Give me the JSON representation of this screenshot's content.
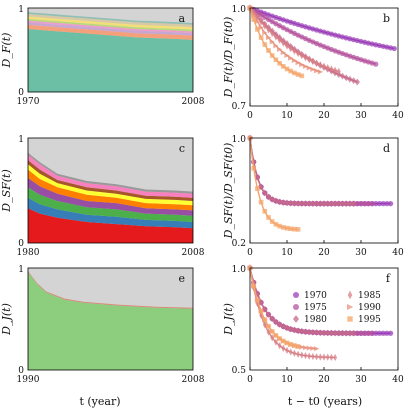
{
  "figure": {
    "xlabel_left": "t (year)",
    "xlabel_right": "t − t0 (years)"
  },
  "chart_data": [
    {
      "panel": "a",
      "type": "area",
      "ylabel": "D_F(t)",
      "xlim": [
        1970,
        2008
      ],
      "ylim": [
        0,
        1
      ],
      "xticks": [
        "1970",
        "2008"
      ],
      "yticks": [
        "0",
        "1"
      ],
      "x": [
        1970,
        1975,
        1980,
        1985,
        1990,
        1995,
        2000,
        2005,
        2008
      ],
      "background": "#d4d4d4",
      "series": [
        {
          "color": "#6cbfa5",
          "values": [
            0.75,
            0.73,
            0.71,
            0.69,
            0.67,
            0.65,
            0.64,
            0.63,
            0.62
          ]
        },
        {
          "color": "#f4a07a",
          "values": [
            0.05,
            0.05,
            0.05,
            0.05,
            0.05,
            0.05,
            0.05,
            0.05,
            0.05
          ]
        },
        {
          "color": "#c7a6d4",
          "values": [
            0.03,
            0.03,
            0.03,
            0.03,
            0.03,
            0.03,
            0.03,
            0.03,
            0.03
          ]
        },
        {
          "color": "#ec9ccc",
          "values": [
            0.02,
            0.02,
            0.02,
            0.02,
            0.02,
            0.02,
            0.02,
            0.02,
            0.02
          ]
        },
        {
          "color": "#b7d97a",
          "values": [
            0.02,
            0.02,
            0.02,
            0.02,
            0.02,
            0.02,
            0.02,
            0.02,
            0.02
          ]
        },
        {
          "color": "#f2df7a",
          "values": [
            0.03,
            0.03,
            0.03,
            0.03,
            0.03,
            0.03,
            0.03,
            0.03,
            0.03
          ]
        },
        {
          "color": "#d8c9a6",
          "values": [
            0.03,
            0.03,
            0.03,
            0.03,
            0.03,
            0.03,
            0.03,
            0.03,
            0.03
          ]
        },
        {
          "color": "#8fbfb5",
          "values": [
            0.02,
            0.02,
            0.02,
            0.02,
            0.02,
            0.02,
            0.02,
            0.02,
            0.02
          ]
        }
      ]
    },
    {
      "panel": "b",
      "type": "scatter",
      "ylabel": "D_F(t)/D_F(t0)",
      "xlim": [
        0,
        40
      ],
      "ylim": [
        0.7,
        1.0
      ],
      "xticks": [
        0,
        10,
        20,
        30,
        40
      ],
      "yticks": [
        "0.7",
        "1.0"
      ],
      "series": [
        {
          "name": "1970",
          "marker": "circle",
          "color": "#9b3fb8",
          "n": 39,
          "a": 0.26,
          "tau": 60,
          "s": 15
        },
        {
          "name": "1975",
          "marker": "hexagon",
          "color": "#b6539e",
          "n": 34,
          "a": 0.3,
          "tau": 40,
          "s": 12
        },
        {
          "name": "1980",
          "marker": "diamond",
          "color": "#c56a8a",
          "n": 29,
          "a": 0.33,
          "tau": 25,
          "s": 10
        },
        {
          "name": "1985",
          "marker": "thin_diamond",
          "color": "#d77f86",
          "n": 24,
          "a": 0.25,
          "tau": 16,
          "s": 8
        },
        {
          "name": "1990",
          "marker": "triangle_right",
          "color": "#e8927d",
          "n": 19,
          "a": 0.23,
          "tau": 10,
          "s": 6
        },
        {
          "name": "1995",
          "marker": "square",
          "color": "#f4a469",
          "n": 14,
          "a": 0.23,
          "tau": 6,
          "s": 4
        }
      ]
    },
    {
      "panel": "c",
      "type": "area",
      "ylabel": "D_SF(t)",
      "xlim": [
        1980,
        2008
      ],
      "ylim": [
        0,
        1
      ],
      "xticks": [
        "1980",
        "2008"
      ],
      "yticks": [
        "0",
        "1"
      ],
      "x": [
        1980,
        1982,
        1985,
        1990,
        1995,
        2000,
        2005,
        2008
      ],
      "background": "#d4d4d4",
      "series": [
        {
          "color": "#e41a1c",
          "values": [
            0.33,
            0.28,
            0.24,
            0.2,
            0.18,
            0.16,
            0.15,
            0.14
          ]
        },
        {
          "color": "#377eb8",
          "values": [
            0.1,
            0.09,
            0.08,
            0.07,
            0.07,
            0.06,
            0.06,
            0.06
          ]
        },
        {
          "color": "#4daf4a",
          "values": [
            0.1,
            0.09,
            0.08,
            0.07,
            0.07,
            0.06,
            0.06,
            0.06
          ]
        },
        {
          "color": "#984ea3",
          "values": [
            0.09,
            0.08,
            0.07,
            0.06,
            0.06,
            0.05,
            0.05,
            0.05
          ]
        },
        {
          "color": "#ff7f00",
          "values": [
            0.08,
            0.07,
            0.06,
            0.06,
            0.05,
            0.05,
            0.05,
            0.05
          ]
        },
        {
          "color": "#ffff33",
          "values": [
            0.05,
            0.05,
            0.04,
            0.04,
            0.04,
            0.04,
            0.04,
            0.04
          ]
        },
        {
          "color": "#a65628",
          "values": [
            0.04,
            0.04,
            0.03,
            0.03,
            0.03,
            0.03,
            0.03,
            0.03
          ]
        },
        {
          "color": "#f781bf",
          "values": [
            0.05,
            0.05,
            0.04,
            0.04,
            0.04,
            0.04,
            0.04,
            0.04
          ]
        },
        {
          "color": "#999999",
          "values": [
            0.02,
            0.02,
            0.02,
            0.02,
            0.02,
            0.02,
            0.02,
            0.02
          ]
        }
      ]
    },
    {
      "panel": "d",
      "type": "scatter",
      "ylabel": "D_SF(t)/D_SF(t0)",
      "xlim": [
        0,
        40
      ],
      "ylim": [
        0.2,
        1.0
      ],
      "xticks": [
        0,
        10,
        20,
        30,
        40
      ],
      "yticks": [
        "0.2",
        "1.0"
      ],
      "series": [
        {
          "name": "1970",
          "marker": "circle",
          "color": "#9b3fb8",
          "n": 38,
          "a": 0.5,
          "tau": 2.2,
          "s": 0
        },
        {
          "name": "1975",
          "marker": "hexagon",
          "color": "#b6539e",
          "n": 33,
          "a": 0.5,
          "tau": 2.2,
          "s": 0
        },
        {
          "name": "1980",
          "marker": "diamond",
          "color": "#c56a8a",
          "n": 28,
          "a": 0.5,
          "tau": 2.2,
          "s": 0
        },
        {
          "name": "1995",
          "marker": "square",
          "color": "#f4a469",
          "n": 13,
          "a": 0.7,
          "tau": 2.5,
          "s": 0
        }
      ]
    },
    {
      "panel": "e",
      "type": "area",
      "ylabel": "D_J(t)",
      "xlim": [
        1990,
        2008
      ],
      "ylim": [
        0,
        1
      ],
      "xticks": [
        "1990",
        "2008"
      ],
      "yticks": [
        "0",
        "1"
      ],
      "x": [
        1990,
        1991,
        1992,
        1994,
        1996,
        2000,
        2004,
        2008
      ],
      "background": "#d4d4d4",
      "series": [
        {
          "color": "#8ccd7e",
          "values": [
            0.96,
            0.84,
            0.76,
            0.69,
            0.66,
            0.63,
            0.61,
            0.6
          ]
        },
        {
          "color": "#d98a7a",
          "values": [
            0.01,
            0.01,
            0.01,
            0.01,
            0.01,
            0.01,
            0.01,
            0.01
          ]
        }
      ]
    },
    {
      "panel": "f",
      "type": "scatter",
      "ylabel": "D_J(t)",
      "xlim": [
        0,
        40
      ],
      "ylim": [
        0.5,
        1.0
      ],
      "xticks": [
        0,
        10,
        20,
        30,
        40
      ],
      "yticks": [
        "0.5",
        "1.0"
      ],
      "legend": {
        "placement": "top-right",
        "entries": [
          "1970",
          "1975",
          "1980",
          "1985",
          "1990",
          "1995"
        ]
      },
      "series": [
        {
          "name": "1970",
          "marker": "circle",
          "color": "#9b3fb8",
          "n": 38,
          "a": 0.32,
          "tau": 4.0,
          "s": 0
        },
        {
          "name": "1975",
          "marker": "hexagon",
          "color": "#b6539e",
          "n": 33,
          "a": 0.32,
          "tau": 4.0,
          "s": 0
        },
        {
          "name": "1980",
          "marker": "diamond",
          "color": "#c56a8a",
          "n": 28,
          "a": 0.32,
          "tau": 4.0,
          "s": 0
        },
        {
          "name": "1985",
          "marker": "thin_diamond",
          "color": "#d77f86",
          "n": 23,
          "a": 0.44,
          "tau": 4.0,
          "s": 0
        },
        {
          "name": "1990",
          "marker": "triangle_right",
          "color": "#e8927d",
          "n": 18,
          "a": 0.4,
          "tau": 4.0,
          "s": 0
        },
        {
          "name": "1995",
          "marker": "square",
          "color": "#f4a469",
          "n": 13,
          "a": 0.4,
          "tau": 4.0,
          "s": 0
        }
      ]
    }
  ]
}
